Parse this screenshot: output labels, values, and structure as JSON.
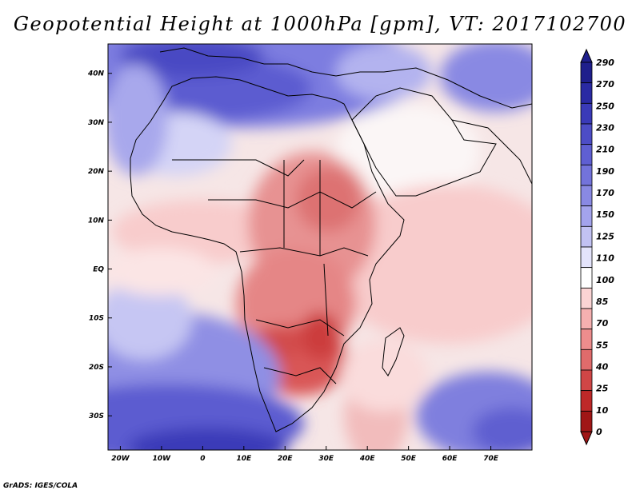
{
  "title": "Geopotential Height at 1000hPa [gpm], VT: 2017102700",
  "credit": "GrADS: IGES/COLA",
  "map": {
    "x_ticks": [
      "20W",
      "10W",
      "0",
      "10E",
      "20E",
      "30E",
      "40E",
      "50E",
      "60E",
      "70E"
    ],
    "y_ticks": [
      "40N",
      "30N",
      "20N",
      "10N",
      "EQ",
      "10S",
      "20S",
      "30S"
    ],
    "lon_range": [
      -23,
      80
    ],
    "lat_range": [
      -37,
      46
    ]
  },
  "colorbar": {
    "levels": [
      "290",
      "270",
      "250",
      "230",
      "210",
      "190",
      "170",
      "150",
      "125",
      "110",
      "100",
      "85",
      "70",
      "55",
      "40",
      "25",
      "10",
      "0"
    ],
    "colors": [
      "#1f1f8c",
      "#2a2aa3",
      "#3a3ab8",
      "#4d4dc6",
      "#5f5fd2",
      "#7373db",
      "#8989e3",
      "#a3a3ec",
      "#c2c2f3",
      "#e4e4fb",
      "#ffffff",
      "#fbd4d4",
      "#f5b0b0",
      "#ed8d8d",
      "#e06b6b",
      "#d04646",
      "#be2929",
      "#a01616"
    ]
  }
}
